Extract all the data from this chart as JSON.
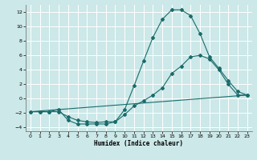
{
  "xlabel": "Humidex (Indice chaleur)",
  "line_color": "#1a6b6b",
  "bg_color": "#cce8e8",
  "grid_color": "#ffffff",
  "line1_x": [
    0,
    1,
    2,
    3,
    4,
    5,
    6,
    7,
    8,
    9,
    10,
    11,
    12,
    13,
    14,
    15,
    16,
    17,
    18,
    19,
    20,
    21,
    22,
    23
  ],
  "line1_y": [
    -1.8,
    -1.8,
    -1.8,
    -1.5,
    -3.0,
    -3.5,
    -3.5,
    -3.5,
    -3.5,
    -3.2,
    -1.5,
    1.8,
    5.2,
    8.5,
    11,
    12.3,
    12.3,
    11.5,
    9,
    5.8,
    4.2,
    2.5,
    1.0,
    0.5
  ],
  "line2_x": [
    0,
    1,
    2,
    3,
    4,
    5,
    6,
    7,
    8,
    9,
    10,
    11,
    12,
    13,
    14,
    15,
    16,
    17,
    18,
    19,
    20,
    21,
    22,
    23
  ],
  "line2_y": [
    -1.8,
    -1.8,
    -1.8,
    -1.8,
    -2.5,
    -3.0,
    -3.2,
    -3.3,
    -3.2,
    -3.2,
    -2.2,
    -1.0,
    -0.3,
    0.5,
    1.5,
    3.5,
    4.5,
    5.8,
    6.0,
    5.5,
    4.0,
    2.0,
    0.5,
    0.5
  ],
  "line3_x": [
    0,
    23
  ],
  "line3_y": [
    -1.8,
    0.5
  ],
  "xlim": [
    -0.5,
    23.5
  ],
  "ylim": [
    -4.5,
    13
  ],
  "xticks": [
    0,
    1,
    2,
    3,
    4,
    5,
    6,
    7,
    8,
    9,
    10,
    11,
    12,
    13,
    14,
    15,
    16,
    17,
    18,
    19,
    20,
    21,
    22,
    23
  ],
  "yticks": [
    -4,
    -2,
    0,
    2,
    4,
    6,
    8,
    10,
    12
  ]
}
